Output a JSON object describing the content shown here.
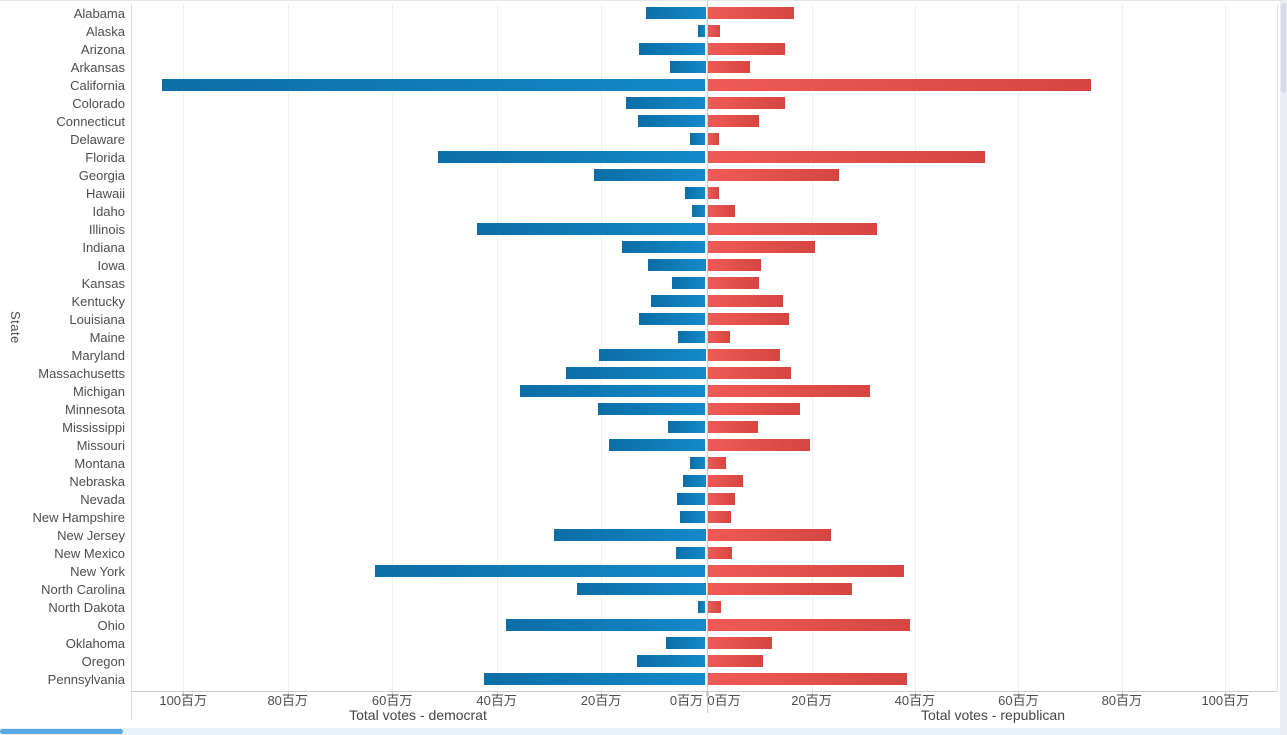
{
  "chart_data": {
    "type": "bar",
    "orientation": "diverging-horizontal",
    "title": "",
    "ylabel": "State",
    "unit_suffix": "百万",
    "axis_max": 110,
    "ticks": [
      0,
      20,
      40,
      60,
      80,
      100
    ],
    "left_axis": {
      "title": "Total votes - democrat",
      "tick_labels": [
        "100百万",
        "80百万",
        "60百万",
        "40百万",
        "20百万",
        "0百万"
      ],
      "direction": "reversed"
    },
    "right_axis": {
      "title": "Total votes - republican",
      "tick_labels": [
        "0百万",
        "20百万",
        "40百万",
        "60百万",
        "80百万",
        "100百万"
      ],
      "direction": "normal"
    },
    "categories": [
      "Alabama",
      "Alaska",
      "Arizona",
      "Arkansas",
      "California",
      "Colorado",
      "Connecticut",
      "Delaware",
      "Florida",
      "Georgia",
      "Hawaii",
      "Idaho",
      "Illinois",
      "Indiana",
      "Iowa",
      "Kansas",
      "Kentucky",
      "Louisiana",
      "Maine",
      "Maryland",
      "Massachusetts",
      "Michigan",
      "Minnesota",
      "Mississippi",
      "Missouri",
      "Montana",
      "Nebraska",
      "Nevada",
      "New Hampshire",
      "New Jersey",
      "New Mexico",
      "New York",
      "North Carolina",
      "North Dakota",
      "Ohio",
      "Oklahoma",
      "Oregon",
      "Pennsylvania"
    ],
    "series": [
      {
        "name": "Total votes - democrat",
        "side": "left",
        "color": "#0e7cb8",
        "values": [
          11.4,
          1.5,
          12.8,
          6.9,
          104.0,
          15.2,
          13.0,
          2.9,
          51.3,
          21.3,
          4.0,
          2.6,
          43.8,
          16.0,
          11.0,
          6.5,
          10.4,
          12.8,
          5.3,
          20.4,
          26.8,
          35.6,
          20.6,
          7.2,
          18.5,
          3.0,
          4.3,
          5.5,
          4.9,
          29.0,
          5.6,
          63.2,
          24.6,
          1.5,
          38.2,
          7.5,
          13.1,
          42.4
        ]
      },
      {
        "name": "Total votes - republican",
        "side": "right",
        "color": "#e4524e",
        "values": [
          16.6,
          2.4,
          14.9,
          8.2,
          74.1,
          14.9,
          9.9,
          2.1,
          53.5,
          25.4,
          2.1,
          5.2,
          32.6,
          20.6,
          10.2,
          9.8,
          14.4,
          15.6,
          4.3,
          13.9,
          16.0,
          31.4,
          17.8,
          9.6,
          19.8,
          3.5,
          6.7,
          5.2,
          4.5,
          23.7,
          4.7,
          37.8,
          27.9,
          2.5,
          39.0,
          12.4,
          10.7,
          38.5
        ]
      }
    ],
    "grid": true,
    "legend": "none"
  },
  "colors": {
    "democrat_blue": "#0e7cb8",
    "republican_red": "#e4524e",
    "gridline": "#efefef",
    "axis_line": "#cccccc",
    "text": "#4d4d4d",
    "hscroll_thumb": "#58a6e2",
    "hscroll_track": "#e7f1fa",
    "vscroll_track": "#ebedf5"
  }
}
